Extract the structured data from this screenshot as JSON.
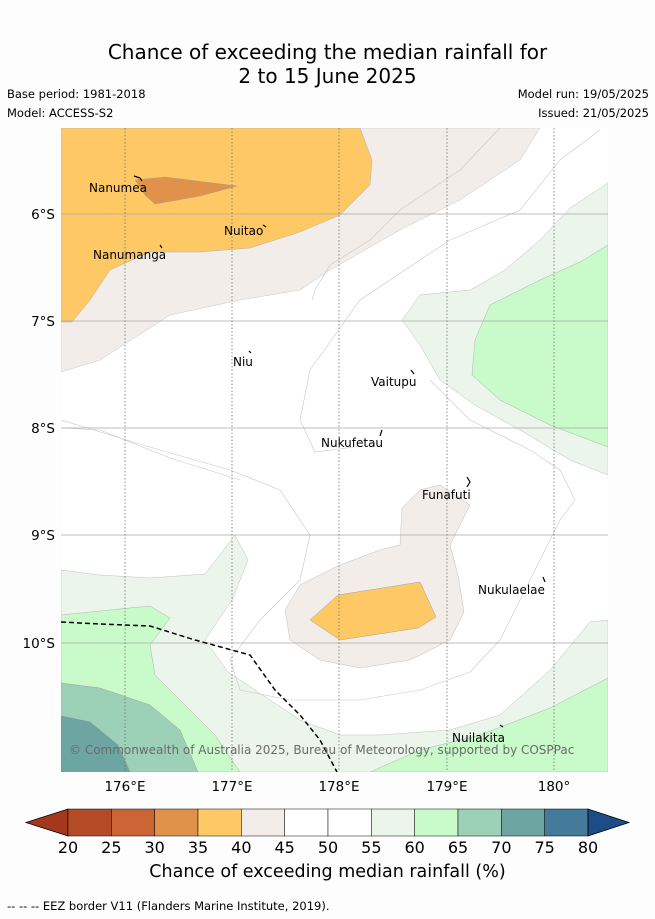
{
  "title_line1": "Chance of exceeding the median rainfall for",
  "title_line2": "2 to 15 June 2025",
  "base_period": "Base period: 1981-2018",
  "model": "Model: ACCESS-S2",
  "model_run": "Model run: 19/05/2025",
  "issued": "Issued: 21/05/2025",
  "copyright": "© Commonwealth of Australia 2025, Bureau of Meteorology, supported by COSPPac",
  "lon_ticks": [
    "176°E",
    "177°E",
    "178°E",
    "179°E",
    "180°"
  ],
  "lat_ticks": [
    "6°S",
    "7°S",
    "8°S",
    "9°S",
    "10°S"
  ],
  "places": [
    "Nanumea",
    "Nuitao",
    "Nanumanga",
    "Niu",
    "Vaitupu",
    "Nukufetau",
    "Funafuti",
    "Nukulaelae",
    "Nuilakita"
  ],
  "colorbar": {
    "ticks": [
      "20",
      "25",
      "30",
      "35",
      "40",
      "45",
      "50",
      "55",
      "60",
      "65",
      "70",
      "75",
      "80"
    ],
    "colors": [
      "#a5371d",
      "#b44a26",
      "#cc6535",
      "#e0924a",
      "#fec965",
      "#f2ede8",
      "#ffffff",
      "#ffffff",
      "#ebf5eb",
      "#c9fbca",
      "#9cd0b7",
      "#6da5a2",
      "#447a9a",
      "#1c4d86"
    ],
    "label": "Chance of exceeding median rainfall (%)"
  },
  "footer": "--  --  -- EEZ border V11 (Flanders Marine Institute, 2019)."
}
